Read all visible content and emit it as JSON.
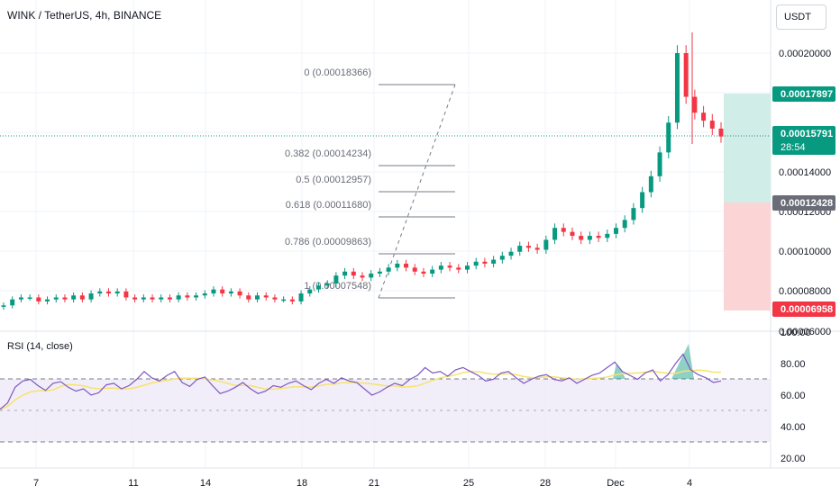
{
  "header": {
    "title": "WINK / TetherUS, 4h, BINANCE",
    "currency": "USDT"
  },
  "price_axis": {
    "labels": [
      "0.00020000",
      "0.00014000",
      "0.00012000",
      "0.00010000",
      "0.00008000",
      "0.00006000"
    ]
  },
  "price_tags": {
    "target": "0.00017897",
    "current": "0.00015791",
    "countdown": "28:54",
    "entry": "0.00012428",
    "stop": "0.00006958"
  },
  "fibonacci": {
    "levels": [
      {
        "label": "0 (0.00018366)",
        "value": 0.00018366
      },
      {
        "label": "0.382 (0.00014234)",
        "value": 0.00014234
      },
      {
        "label": "0.5 (0.00012957)",
        "value": 0.00012957
      },
      {
        "label": "0.618 (0.00011680)",
        "value": 0.0001168
      },
      {
        "label": "0.786 (0.00009863)",
        "value": 9.863e-05
      },
      {
        "label": "1 (0.00007548)",
        "value": 7.548e-05
      }
    ]
  },
  "rsi": {
    "title": "RSI (14, close)",
    "axis_labels": [
      "100.00",
      "80.00",
      "60.00",
      "40.00",
      "20.00"
    ]
  },
  "time_axis": {
    "labels": [
      "7",
      "11",
      "14",
      "18",
      "21",
      "25",
      "28",
      "Dec",
      "4"
    ]
  },
  "colors": {
    "up": "#089981",
    "down": "#f23645",
    "target_zone": "#d1ede8",
    "stop_zone": "#fbd4d6",
    "rsi_line": "#7e57c2",
    "rsi_ma": "#f7e26b",
    "rsi_band": "#ede7f6"
  },
  "chart_data": {
    "type": "candlestick",
    "series": [
      {
        "values": [
          7.3e-05,
          7.6e-05,
          7.7e-05,
          7.7e-05,
          7.5e-05,
          7.6e-05,
          7.7e-05,
          7.6e-05,
          7.8e-05,
          7.6e-05,
          7.9e-05,
          8e-05,
          7.9e-05,
          8e-05,
          7.7e-05,
          7.6e-05,
          7.7e-05,
          7.6e-05,
          7.7e-05,
          7.6e-05,
          7.8e-05,
          7.7e-05,
          7.8e-05,
          7.9e-05,
          8.1e-05,
          7.9e-05,
          8e-05,
          7.8e-05,
          7.6e-05,
          7.8e-05,
          7.7e-05,
          7.6e-05
        ]
      },
      {
        "values": [
          7.6e-05,
          7.5e-05,
          7.9e-05,
          8.1e-05,
          8.3e-05,
          8.4e-05,
          8.8e-05,
          9e-05,
          8.8e-05,
          8.7e-05,
          8.9e-05,
          9e-05,
          9.2e-05,
          9.4e-05,
          9.2e-05,
          9e-05,
          8.9e-05,
          9.1e-05,
          9.3e-05,
          9.2e-05,
          9.1e-05,
          9.3e-05,
          9.5e-05,
          9.4e-05,
          9.6e-05,
          9.8e-05,
          0.0001,
          0.000103,
          0.000102,
          0.000101,
          0.000106,
          0.000112,
          0.00011,
          0.000108,
          0.000106,
          0.000108,
          0.000107,
          0.000109,
          0.000112,
          0.000116,
          0.000122,
          0.00013,
          0.000138,
          0.00015,
          0.000165,
          0.0002,
          0.000178,
          0.00017,
          0.000166,
          0.000162,
          0.000158
        ]
      }
    ]
  }
}
